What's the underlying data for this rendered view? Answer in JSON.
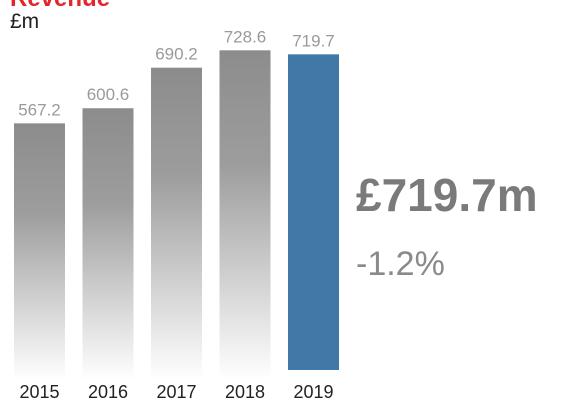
{
  "chart_data": {
    "type": "bar",
    "title": "Revenue",
    "subtitle": "£m",
    "categories": [
      "2015",
      "2016",
      "2017",
      "2018",
      "2019"
    ],
    "values": [
      567.2,
      600.6,
      690.2,
      728.6,
      719.7
    ],
    "colors": [
      "#8c8c8c",
      "#8c8c8c",
      "#8c8c8c",
      "#8c8c8c",
      "#4079a7"
    ],
    "ylim": [
      0,
      800
    ],
    "highlight": "£719.7m",
    "change": "-1.2%"
  }
}
